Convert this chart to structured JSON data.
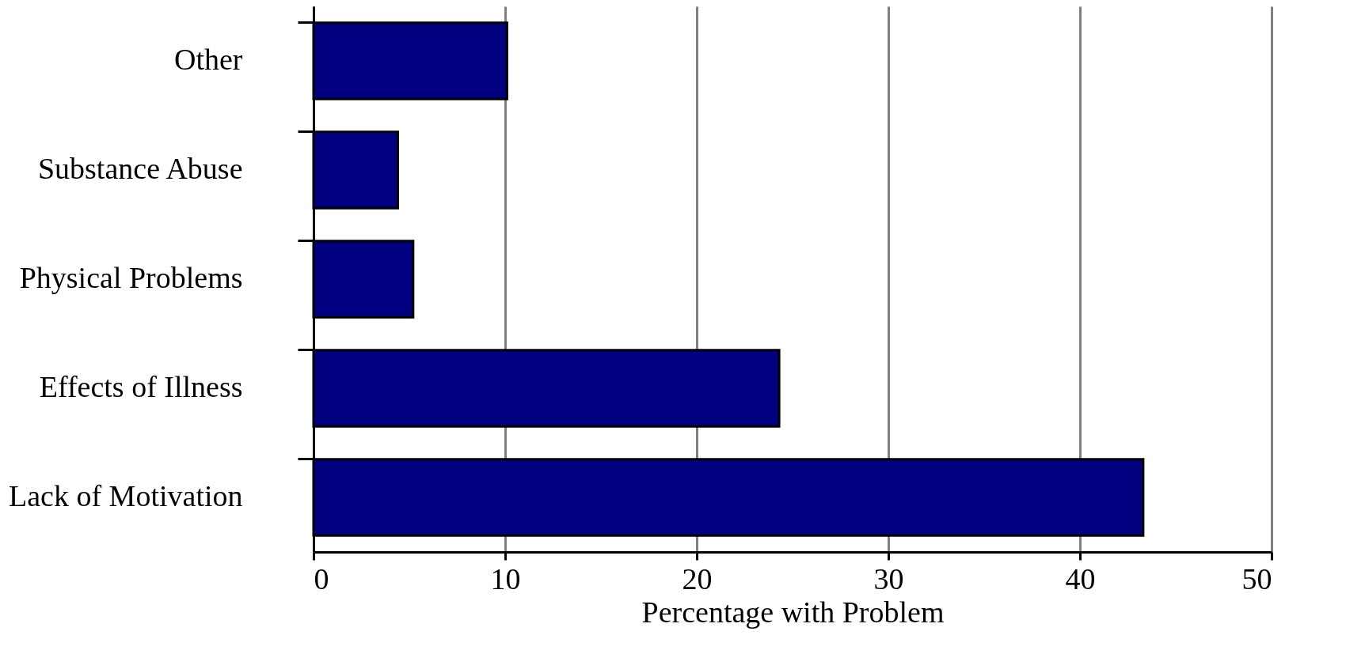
{
  "chart_data": {
    "type": "bar",
    "orientation": "horizontal",
    "categories": [
      "Other",
      "Substance Abuse",
      "Physical Problems",
      "Effects of Illness",
      "Lack of Motivation"
    ],
    "values": [
      10.1,
      4.4,
      5.2,
      24.3,
      43.3
    ],
    "color": "#000080",
    "xlabel": "Percentage with Problem",
    "xlim": [
      0,
      50
    ],
    "xticks": [
      0,
      10,
      20,
      30,
      40,
      50
    ],
    "grid": "x"
  }
}
